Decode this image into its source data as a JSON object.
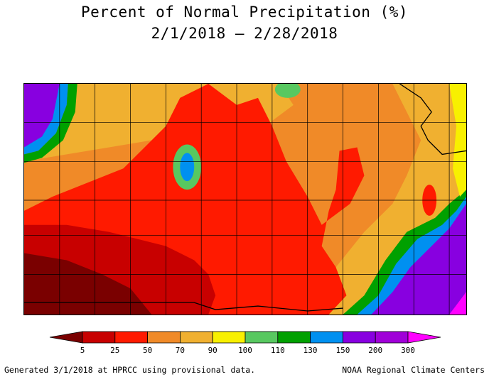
{
  "title": "Percent of Normal Precipitation (%)",
  "date_range": "2/1/2018 – 2/28/2018",
  "legend": {
    "ticks": [
      "5",
      "25",
      "50",
      "70",
      "90",
      "100",
      "110",
      "130",
      "150",
      "200",
      "300"
    ],
    "colors": [
      "#7a0000",
      "#c80000",
      "#ff1a00",
      "#f08a28",
      "#f0b030",
      "#f8f000",
      "#58c860",
      "#00a000",
      "#0090f0",
      "#8800e0",
      "#a000d8",
      "#ff00ff"
    ]
  },
  "footer": {
    "left": "Generated 3/1/2018 at HPRCC using provisional data.",
    "right": "NOAA Regional Climate Centers"
  }
}
